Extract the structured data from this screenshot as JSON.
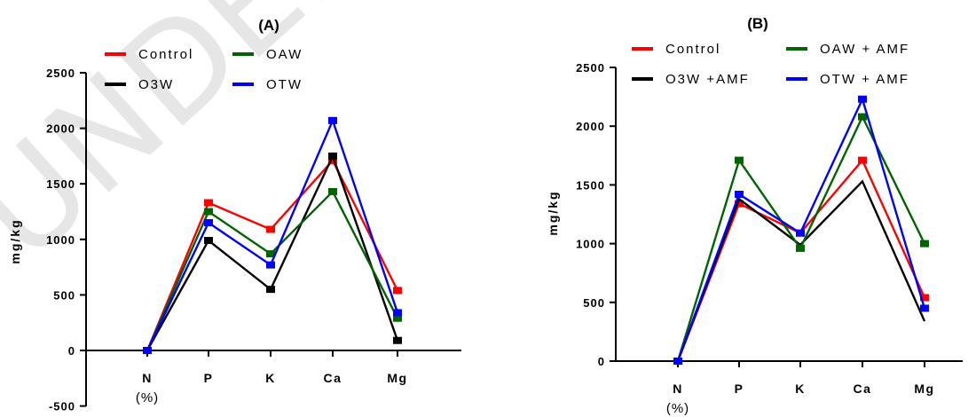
{
  "watermark": "UNDER REVIEW",
  "chart_data": [
    {
      "type": "line",
      "title": "(A)",
      "ylabel": "mg/kg",
      "categories": [
        "N",
        "P",
        "K",
        "Ca",
        "Mg"
      ],
      "category_subtitles": [
        "(%)",
        "",
        "",
        "",
        ""
      ],
      "ylim": [
        -500,
        2500
      ],
      "yticks": [
        "-500",
        "0",
        "500",
        "1000",
        "1500",
        "2000",
        "2500"
      ],
      "grid": false,
      "legend": "top",
      "series": [
        {
          "name": "Control",
          "color": "#ff0000",
          "values": [
            0,
            1330,
            1090,
            1710,
            540
          ]
        },
        {
          "name": "O3W",
          "color": "#000000",
          "values": [
            0,
            990,
            550,
            1750,
            90
          ]
        },
        {
          "name": "OAW",
          "color": "#006400",
          "values": [
            0,
            1250,
            870,
            1430,
            290
          ]
        },
        {
          "name": "OTW",
          "color": "#0000ff",
          "values": [
            0,
            1150,
            770,
            2070,
            340
          ]
        }
      ]
    },
    {
      "type": "line",
      "title": "(B)",
      "ylabel": "mg/kg",
      "categories": [
        "N",
        "P",
        "K",
        "Ca",
        "Mg"
      ],
      "category_subtitles": [
        "(%)",
        "",
        "",
        "",
        ""
      ],
      "ylim": [
        0,
        2500
      ],
      "yticks": [
        "0",
        "500",
        "1000",
        "1500",
        "2000",
        "2500"
      ],
      "grid": false,
      "legend": "top",
      "series": [
        {
          "name": "Control",
          "color": "#ff0000",
          "values": [
            0,
            1340,
            1090,
            1710,
            540
          ],
          "markers": true
        },
        {
          "name": "O3W +AMF",
          "color": "#000000",
          "values": [
            0,
            1380,
            990,
            1530,
            340
          ],
          "markers": false
        },
        {
          "name": "OAW + AMF",
          "color": "#006400",
          "values": [
            0,
            1710,
            960,
            2080,
            1000
          ],
          "markers": true
        },
        {
          "name": "OTW + AMF",
          "color": "#0000ff",
          "values": [
            0,
            1420,
            1090,
            2230,
            450
          ],
          "markers": true
        }
      ]
    }
  ]
}
